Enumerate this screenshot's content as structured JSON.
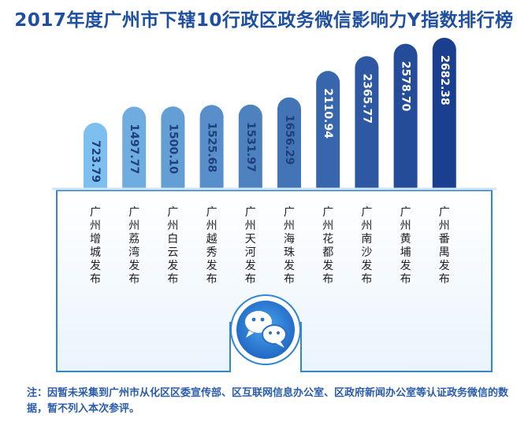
{
  "title": "2017年度广州市下辖10行政区政务微信影响力Y指数排行榜",
  "colors": {
    "title": "#1f4fa0",
    "bar_light": "#7dbfee",
    "bar_dark": "#1a3f8f",
    "base_border": "#2f86d6",
    "base_fill": "#ffffff",
    "label": "#222222",
    "note": "#2a5caa"
  },
  "icon": "wechat-icon",
  "note": {
    "prefix": "注：",
    "text": "因暂未采集到广州市从化区区委宣传部、区互联网信息办公室、区政府新闻办公室等认证政务微信的数据，暂不列入本次参评。"
  },
  "chart_data": {
    "type": "bar",
    "title": "2017年度广州市下辖10行政区政务微信影响力Y指数排行榜",
    "categories": [
      "广州增城发布",
      "广州荔湾发布",
      "广州白云发布",
      "广州越秀发布",
      "广州天河发布",
      "广州海珠发布",
      "广州花都发布",
      "广州南沙发布",
      "广州黄埔发布",
      "广州番禺发布"
    ],
    "values": [
      723.79,
      1497.77,
      1500.1,
      1525.68,
      1531.97,
      1656.29,
      2110.94,
      2365.77,
      2578.7,
      2682.38
    ],
    "value_labels": [
      "723.79",
      "1497.77",
      "1500.10",
      "1525.68",
      "1531.97",
      "1656.29",
      "2110.94",
      "2365.77",
      "2578.70",
      "2682.38"
    ],
    "xlabel": "",
    "ylabel": "",
    "grid": false,
    "legend": "none"
  }
}
